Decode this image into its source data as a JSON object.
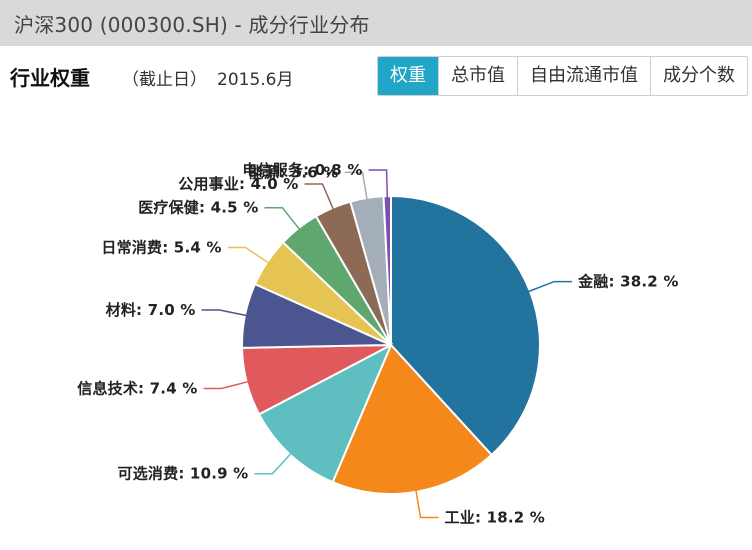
{
  "page": {
    "title": "沪深300 (000300.SH) - 成分行业分布"
  },
  "toolbar": {
    "section_label": "行业权重",
    "as_of_label": "（截止日）",
    "as_of_value": "2015.6月",
    "tabs": [
      {
        "label": "权重",
        "active": true
      },
      {
        "label": "总市值",
        "active": false
      },
      {
        "label": "自由流通市值",
        "active": false
      },
      {
        "label": "成分个数",
        "active": false
      }
    ]
  },
  "chart_data": {
    "type": "pie",
    "unit": "%",
    "slices": [
      {
        "label": "金融",
        "value": 38.2,
        "color": "#23739f"
      },
      {
        "label": "工业",
        "value": 18.2,
        "color": "#f5881a"
      },
      {
        "label": "可选消费",
        "value": 10.9,
        "color": "#5fbfc0"
      },
      {
        "label": "信息技术",
        "value": 7.4,
        "color": "#e15a5b"
      },
      {
        "label": "材料",
        "value": 7.0,
        "color": "#4b5590"
      },
      {
        "label": "日常消费",
        "value": 5.4,
        "color": "#e6c453"
      },
      {
        "label": "医疗保健",
        "value": 4.5,
        "color": "#5fa66f"
      },
      {
        "label": "公用事业",
        "value": 4.0,
        "color": "#8c6a55"
      },
      {
        "label": "能源",
        "value": 3.6,
        "color": "#a4aeb8"
      },
      {
        "label": "电信服务",
        "value": 0.8,
        "color": "#7f4fb0"
      }
    ],
    "legend": "none"
  }
}
